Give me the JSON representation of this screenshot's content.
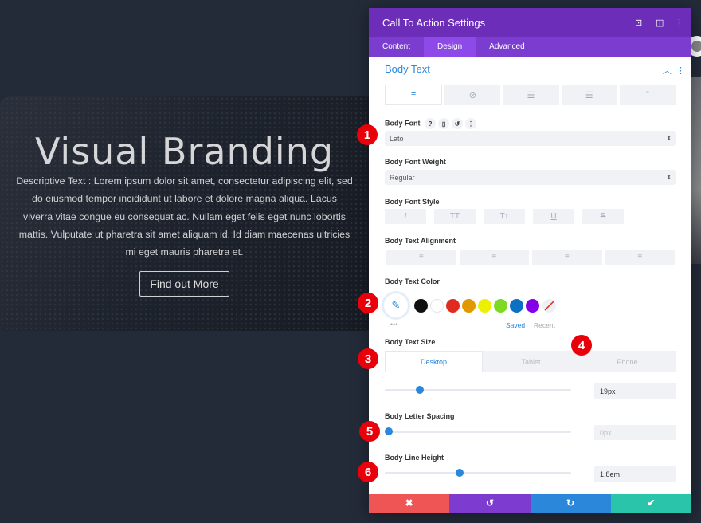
{
  "hero": {
    "title": "Visual Branding",
    "text": "Descriptive Text : Lorem ipsum dolor sit amet, consectetur adipiscing elit, sed do eiusmod tempor incididunt ut labore et dolore magna aliqua. Lacus viverra vitae congue eu consequat ac. Nullam eget felis eget nunc lobortis mattis. Vulputate ut pharetra sit amet aliquam id. Id diam maecenas ultricies mi eget mauris pharetra et.",
    "button": "Find out More"
  },
  "panel": {
    "title": "Call To Action Settings",
    "tabs": [
      "Content",
      "Design",
      "Advanced"
    ],
    "active_tab": "Design",
    "section": "Body Text",
    "body_font": {
      "label": "Body Font",
      "value": "Lato"
    },
    "font_weight": {
      "label": "Body Font Weight",
      "value": "Regular"
    },
    "font_style": {
      "label": "Body Font Style",
      "options": [
        "I",
        "TT",
        "Tт",
        "U",
        "S"
      ]
    },
    "alignment": {
      "label": "Body Text Alignment"
    },
    "color": {
      "label": "Body Text Color",
      "swatches": [
        "#111111",
        "#ffffff",
        "#e02b20",
        "#e09900",
        "#edf000",
        "#7cda24",
        "#0c71c3",
        "#8300e9"
      ],
      "saved": "Saved",
      "recent": "Recent"
    },
    "size": {
      "label": "Body Text Size",
      "devices": [
        "Desktop",
        "Tablet",
        "Phone"
      ],
      "value": "19px",
      "slider": 0.19
    },
    "letter_spacing": {
      "label": "Body Letter Spacing",
      "value": "0px",
      "slider": 0.0
    },
    "line_height": {
      "label": "Body Line Height",
      "value": "1.8em",
      "slider": 0.4
    },
    "footer_colors": [
      "#ef5555",
      "#7e3bd0",
      "#2b87da",
      "#29c4a9"
    ]
  },
  "badges": [
    "1",
    "2",
    "3",
    "4",
    "5",
    "6"
  ],
  "badge_color": "#e8000b"
}
